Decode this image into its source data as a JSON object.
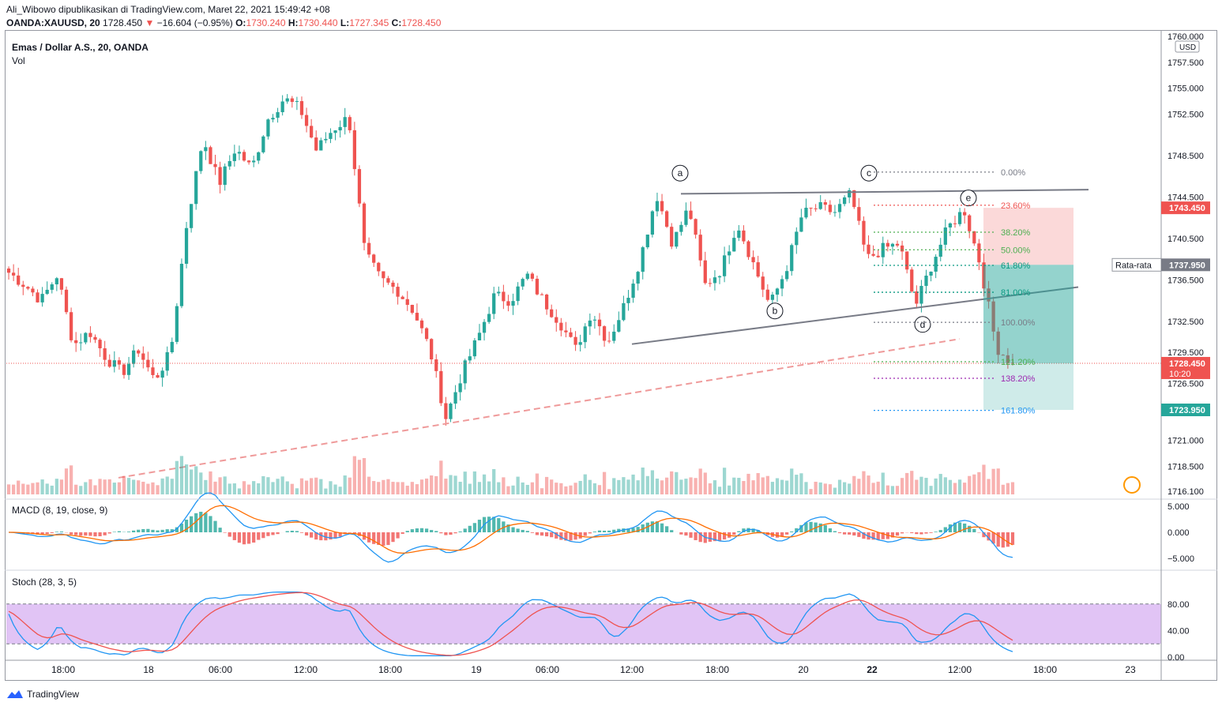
{
  "header": {
    "line1": "Ali_Wibowo dipublikasikan di TradingView.com, Maret 22, 2021 15:49:42 +08",
    "symbol": "OANDA:XAUUSD, 20",
    "last": "1728.450",
    "change": "−16.604 (−0.95%)",
    "o_label": "O:",
    "o": "1730.240",
    "h_label": "H:",
    "h": "1730.440",
    "l_label": "L:",
    "l": "1727.345",
    "c_label": "C:",
    "c": "1728.450"
  },
  "legend": {
    "title": "Emas / Dollar A.S., 20, OANDA",
    "vol": "Vol",
    "macd": "MACD (8, 19, close, 9)",
    "stoch": "Stoch (28, 3, 5)"
  },
  "footer": {
    "brand": "TradingView"
  },
  "colors": {
    "up": "#26a69a",
    "down": "#ef5350",
    "stoch_band": "#e1c4f5",
    "fib_red": "#ef5350",
    "fib_green": "#4caf50",
    "fib_blue": "#2196f3"
  },
  "chart_data": [
    {
      "type": "candlestick",
      "title": "Emas / Dollar A.S., 20, OANDA",
      "currency": "USD",
      "ylim": [
        1716.1,
        1760.0
      ],
      "y_ticks": [
        "1760.000",
        "1757.500",
        "1755.000",
        "1752.500",
        "1748.500",
        "1744.500",
        "1740.500",
        "1736.500",
        "1732.500",
        "1729.500",
        "1726.500",
        "1723.950",
        "1721.000",
        "1718.500",
        "1716.100"
      ],
      "x_ticks": [
        "18:00",
        "18",
        "06:00",
        "12:00",
        "18:00",
        "19",
        "06:00",
        "12:00",
        "18:00",
        "20",
        "22",
        "12:00",
        "18:00",
        "23"
      ],
      "price_tags": [
        {
          "label": "",
          "value": "1743.450",
          "color": "#ef5350"
        },
        {
          "label": "Rata-rata",
          "value": "1737.950",
          "color": "#787b86"
        },
        {
          "label": "",
          "value": "1728.450",
          "sub": "10:20",
          "color": "#ef5350"
        },
        {
          "label": "",
          "value": "1723.950",
          "color": "#26a69a"
        }
      ],
      "close_path": [
        1737.2,
        1736.0,
        1734.5,
        1737.0,
        1730.2,
        1731.5,
        1729.0,
        1727.5,
        1729.8,
        1726.8,
        1729.5,
        1742.0,
        1750.2,
        1745.8,
        1749.2,
        1747.2,
        1752.0,
        1754.0,
        1753.0,
        1749.0,
        1751.0,
        1752.2,
        1739.0,
        1736.5,
        1735.5,
        1733.5,
        1729.8,
        1723.2,
        1727.5,
        1731.0,
        1735.0,
        1734.5,
        1737.0,
        1734.5,
        1732.5,
        1729.8,
        1733.5,
        1730.5,
        1734.0,
        1738.5,
        1744.8,
        1740.0,
        1743.5,
        1736.0,
        1737.5,
        1742.0,
        1738.0,
        1734.0,
        1737.5,
        1742.8,
        1743.5,
        1743.0,
        1744.8,
        1738.5,
        1739.5,
        1740.0,
        1734.0,
        1738.0,
        1741.5,
        1743.3,
        1738.0,
        1730.0,
        1728.4
      ],
      "patterns": {
        "triangle_points": [
          "a",
          "b",
          "c",
          "d",
          "e"
        ],
        "trend_lines": 2,
        "average_line": "dashed"
      },
      "fibonacci": [
        {
          "label": "0.00%",
          "value": 1746.9
        },
        {
          "label": "23.60%",
          "value": 1743.7
        },
        {
          "label": "38.20%",
          "value": 1741.1
        },
        {
          "label": "50.00%",
          "value": 1739.4
        },
        {
          "label": "61.80%",
          "value": 1737.9
        },
        {
          "label": "81.00%",
          "value": 1735.3
        },
        {
          "label": "100.00%",
          "value": 1732.4
        },
        {
          "label": "121.20%",
          "value": 1728.6
        },
        {
          "label": "138.20%",
          "value": 1727.0
        },
        {
          "label": "161.80%",
          "value": 1723.9
        }
      ],
      "position": {
        "entry": 1737.95,
        "stop": 1743.45,
        "target": 1723.95
      }
    },
    {
      "type": "bar",
      "title": "MACD (8, 19, close, 9)",
      "y_ticks": [
        "5.000",
        "0.000",
        "−5.000"
      ],
      "ylim": [
        -5.5,
        5.5
      ]
    },
    {
      "type": "line",
      "title": "Stoch (28, 3, 5)",
      "y_ticks": [
        "80.00",
        "40.00",
        "0.00"
      ],
      "ylim": [
        0,
        100
      ],
      "band": [
        20,
        80
      ]
    }
  ]
}
